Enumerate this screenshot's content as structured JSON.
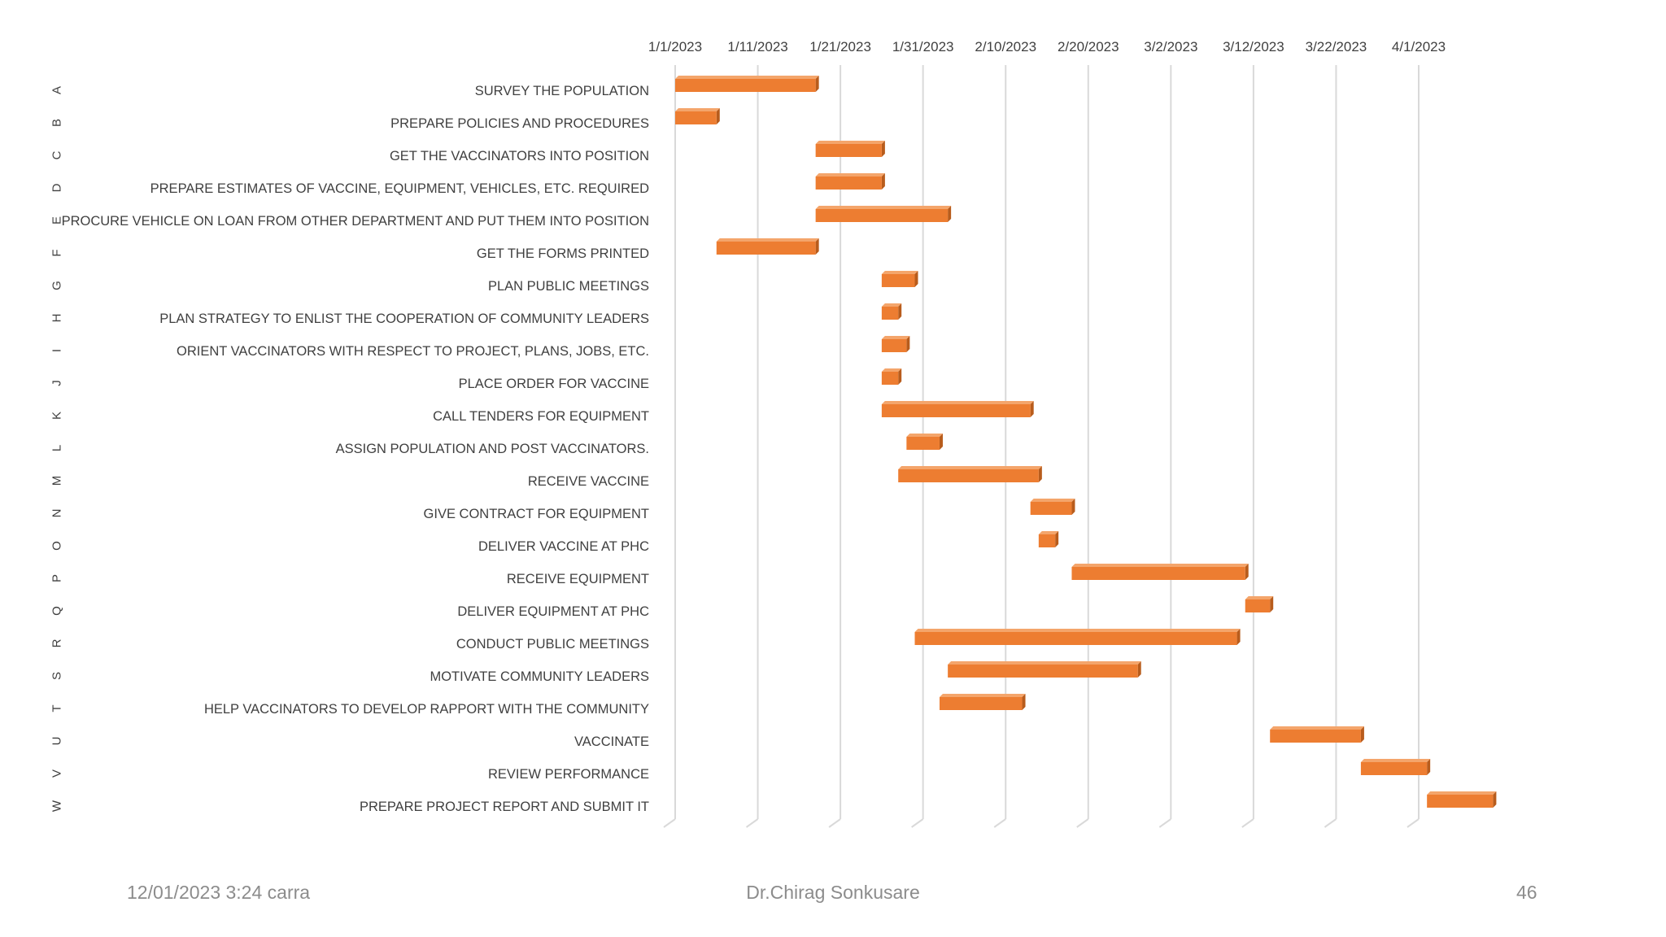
{
  "colors": {
    "bar_front": "#ED7D31",
    "bar_top": "#F4A56B",
    "bar_side": "#B85C1C",
    "grid": "#D9D9D9",
    "text": "#404040"
  },
  "chart_data": {
    "type": "bar",
    "orientation": "horizontal-gantt",
    "x_ticks": [
      "1/1/2023",
      "1/11/2023",
      "1/21/2023",
      "1/31/2023",
      "2/10/2023",
      "2/20/2023",
      "3/2/2023",
      "3/12/2023",
      "3/22/2023",
      "4/1/2023"
    ],
    "xlim": [
      "2023-01-01",
      "2023-04-01"
    ],
    "grid": true,
    "tasks": [
      {
        "code": "A",
        "name": "SURVEY THE POPULATION",
        "start": "2023-01-01",
        "end": "2023-01-18"
      },
      {
        "code": "B",
        "name": "PREPARE POLICIES AND PROCEDURES",
        "start": "2023-01-01",
        "end": "2023-01-06"
      },
      {
        "code": "C",
        "name": "GET THE VACCINATORS INTO POSITION",
        "start": "2023-01-18",
        "end": "2023-01-26"
      },
      {
        "code": "D",
        "name": "PREPARE ESTIMATES OF VACCINE, EQUIPMENT, VEHICLES, ETC. REQUIRED",
        "start": "2023-01-18",
        "end": "2023-01-26"
      },
      {
        "code": "E",
        "name": "PROCURE VEHICLE ON LOAN FROM OTHER DEPARTMENT AND PUT THEM INTO POSITION",
        "start": "2023-01-18",
        "end": "2023-02-03"
      },
      {
        "code": "F",
        "name": "GET THE FORMS PRINTED",
        "start": "2023-01-06",
        "end": "2023-01-18"
      },
      {
        "code": "G",
        "name": "PLAN PUBLIC MEETINGS",
        "start": "2023-01-26",
        "end": "2023-01-30"
      },
      {
        "code": "H",
        "name": "PLAN STRATEGY TO ENLIST THE COOPERATION OF COMMUNITY LEADERS",
        "start": "2023-01-26",
        "end": "2023-01-28"
      },
      {
        "code": "I",
        "name": "ORIENT VACCINATORS WITH RESPECT TO PROJECT, PLANS, JOBS, ETC.",
        "start": "2023-01-26",
        "end": "2023-01-29"
      },
      {
        "code": "J",
        "name": "PLACE ORDER FOR VACCINE",
        "start": "2023-01-26",
        "end": "2023-01-28"
      },
      {
        "code": "K",
        "name": "CALL TENDERS FOR EQUIPMENT",
        "start": "2023-01-26",
        "end": "2023-02-13"
      },
      {
        "code": "L",
        "name": "ASSIGN POPULATION AND POST VACCINATORS.",
        "start": "2023-01-29",
        "end": "2023-02-02"
      },
      {
        "code": "M",
        "name": "RECEIVE VACCINE",
        "start": "2023-01-28",
        "end": "2023-02-14"
      },
      {
        "code": "N",
        "name": "GIVE CONTRACT FOR EQUIPMENT",
        "start": "2023-02-13",
        "end": "2023-02-18"
      },
      {
        "code": "O",
        "name": "DELIVER VACCINE AT PHC",
        "start": "2023-02-14",
        "end": "2023-02-16"
      },
      {
        "code": "P",
        "name": "RECEIVE EQUIPMENT",
        "start": "2023-02-18",
        "end": "2023-03-11"
      },
      {
        "code": "Q",
        "name": "DELIVER EQUIPMENT AT PHC",
        "start": "2023-03-11",
        "end": "2023-03-14"
      },
      {
        "code": "R",
        "name": "CONDUCT PUBLIC MEETINGS",
        "start": "2023-01-30",
        "end": "2023-03-10"
      },
      {
        "code": "S",
        "name": "MOTIVATE COMMUNITY LEADERS",
        "start": "2023-02-03",
        "end": "2023-02-26"
      },
      {
        "code": "T",
        "name": "HELP VACCINATORS TO DEVELOP RAPPORT WITH THE COMMUNITY",
        "start": "2023-02-02",
        "end": "2023-02-12"
      },
      {
        "code": "U",
        "name": "VACCINATE",
        "start": "2023-03-14",
        "end": "2023-03-25"
      },
      {
        "code": "V",
        "name": "REVIEW PERFORMANCE",
        "start": "2023-03-25",
        "end": "2023-04-02"
      },
      {
        "code": "W",
        "name": "PREPARE PROJECT REPORT AND SUBMIT IT",
        "start": "2023-04-02",
        "end": "2023-04-10"
      }
    ]
  },
  "footer": {
    "left": "12/01/2023 3:24 carra",
    "center": "Dr.Chirag Sonkusare",
    "right": "46"
  }
}
